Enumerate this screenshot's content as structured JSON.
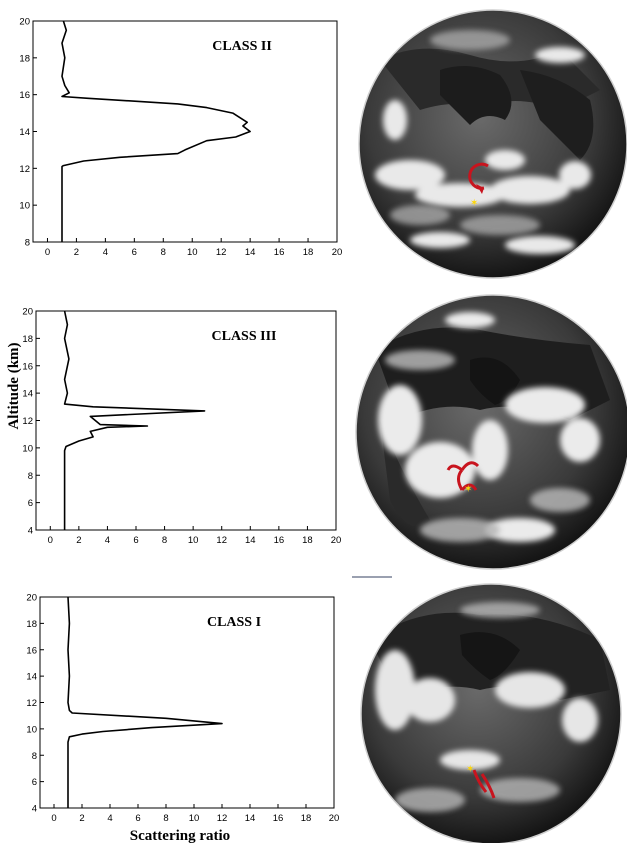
{
  "shared_labels": {
    "ylabel": "Altitude (km)",
    "xlabel": "Scattering ratio"
  },
  "colors": {
    "profile_line": "#000000",
    "marker_red": "#c8141e",
    "marker_yellow": "#ffd700"
  },
  "chart_data": [
    {
      "type": "line",
      "title": "CLASS II",
      "xlim": [
        -1,
        20
      ],
      "ylim": [
        8,
        20
      ],
      "xticks": [
        0,
        2,
        4,
        6,
        8,
        10,
        12,
        14,
        16,
        18,
        20
      ],
      "yticks": [
        8,
        10,
        12,
        14,
        16,
        18,
        20
      ],
      "series": [
        {
          "x": [
            1,
            1,
            1,
            1,
            1,
            1,
            1,
            1.1,
            2.5,
            5,
            9,
            9.5,
            11,
            13,
            14,
            13.5,
            13.8,
            13,
            12.8,
            11,
            9,
            2.8,
            1,
            1.5,
            1.2,
            1,
            1.2,
            1,
            1.3,
            1.1
          ],
          "y": [
            8,
            9,
            10,
            11,
            11.5,
            12,
            12.1,
            12.15,
            12.4,
            12.6,
            12.8,
            13,
            13.5,
            13.7,
            14,
            14.3,
            14.5,
            14.9,
            15,
            15.3,
            15.5,
            15.8,
            15.9,
            16.1,
            16.5,
            17,
            18,
            18.8,
            19.5,
            20
          ]
        }
      ]
    },
    {
      "type": "line",
      "title": "CLASS III",
      "xlim": [
        -1,
        20
      ],
      "ylim": [
        4,
        20
      ],
      "xticks": [
        0,
        2,
        4,
        6,
        8,
        10,
        12,
        14,
        16,
        18,
        20
      ],
      "yticks": [
        4,
        6,
        8,
        10,
        12,
        14,
        16,
        18,
        20
      ],
      "series": [
        {
          "x": [
            1,
            1,
            1,
            1,
            1.1,
            2,
            3,
            2.8,
            4,
            6.8,
            3.5,
            2.8,
            10.8,
            3,
            1,
            1.2,
            1,
            1.3,
            1,
            1.2,
            1
          ],
          "y": [
            4,
            6,
            8,
            9.8,
            10.1,
            10.5,
            10.8,
            11.2,
            11.5,
            11.6,
            11.7,
            12.3,
            12.7,
            13,
            13.2,
            14,
            15,
            16.5,
            18,
            19,
            20
          ]
        }
      ]
    },
    {
      "type": "line",
      "title": "CLASS I",
      "xlim": [
        -1,
        20
      ],
      "ylim": [
        4,
        20
      ],
      "xticks": [
        0,
        2,
        4,
        6,
        8,
        10,
        12,
        14,
        16,
        18,
        20
      ],
      "yticks": [
        4,
        6,
        8,
        10,
        12,
        14,
        16,
        18,
        20
      ],
      "series": [
        {
          "x": [
            1,
            1,
            1,
            1,
            1.1,
            2,
            3.5,
            7,
            12,
            8,
            1.3,
            1.1,
            1,
            1.1,
            1,
            1.1,
            1
          ],
          "y": [
            4,
            6,
            8,
            9,
            9.4,
            9.6,
            9.8,
            10.1,
            10.4,
            10.8,
            11.2,
            11.4,
            12,
            14,
            16,
            18,
            20
          ]
        }
      ]
    }
  ]
}
